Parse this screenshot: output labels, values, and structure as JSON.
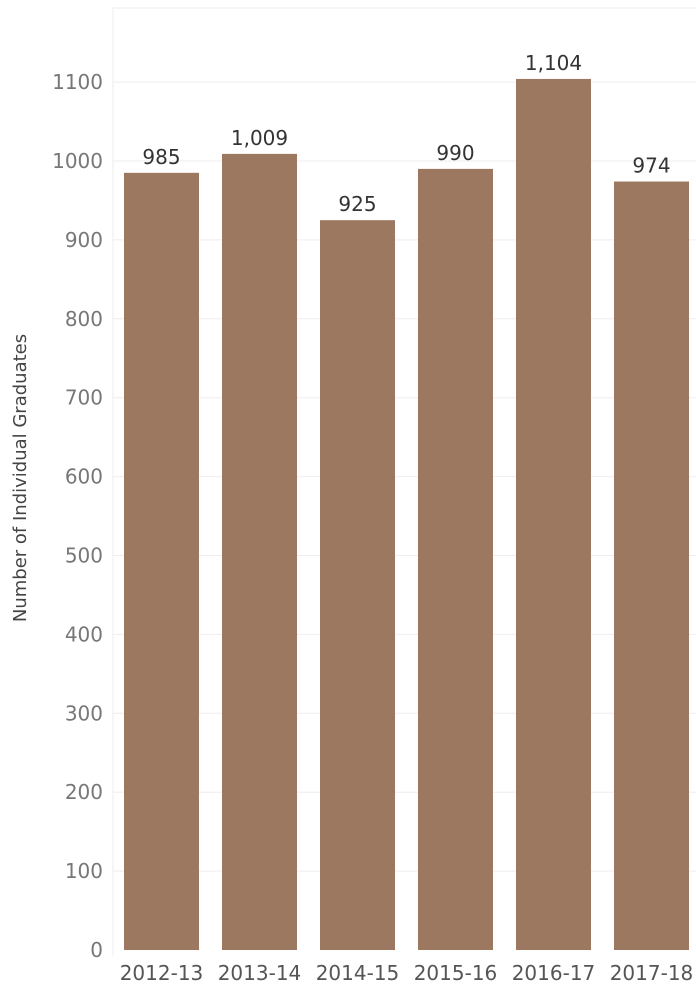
{
  "chart_data": {
    "type": "bar",
    "ylabel": "Number of Individual Graduates",
    "xlabel": "",
    "ylim": [
      0,
      1150
    ],
    "yticks": [
      0,
      100,
      200,
      300,
      400,
      500,
      600,
      700,
      800,
      900,
      1000,
      1100
    ],
    "grid": true,
    "bar_color": "#9c7860",
    "categories": [
      "2012-13",
      "2013-14",
      "2014-15",
      "2015-16",
      "2016-17",
      "2017-18"
    ],
    "values": [
      985,
      1009,
      925,
      990,
      1104,
      974
    ],
    "value_labels": [
      "985",
      "1,009",
      "925",
      "990",
      "1,104",
      "974"
    ]
  }
}
